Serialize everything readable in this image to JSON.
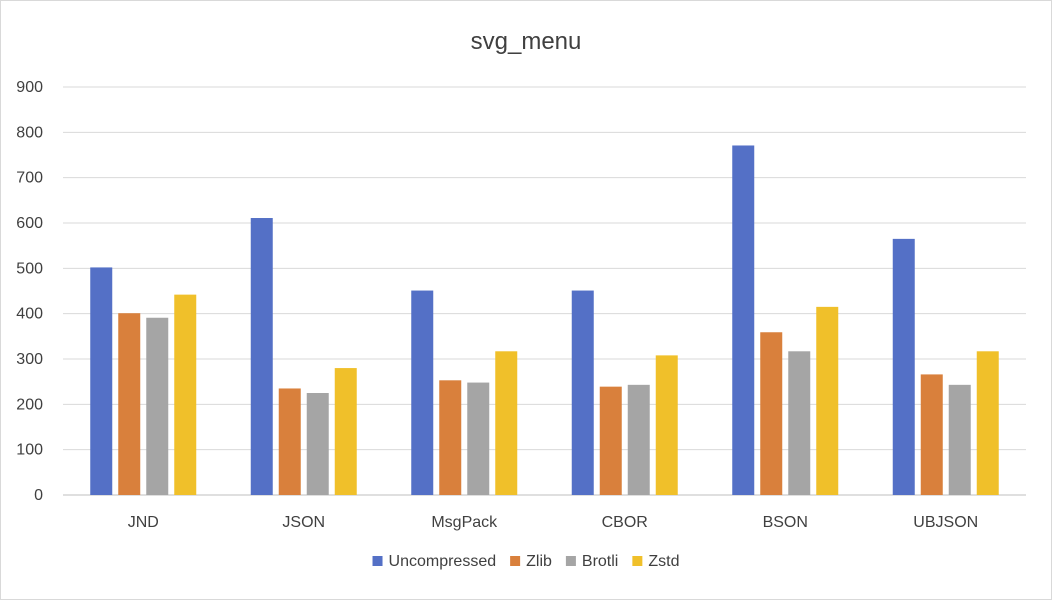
{
  "chart_data": {
    "type": "bar",
    "title": "svg_menu",
    "xlabel": "",
    "ylabel": "",
    "ylim": [
      0,
      900
    ],
    "yticks": [
      0,
      100,
      200,
      300,
      400,
      500,
      600,
      700,
      800,
      900
    ],
    "grid": true,
    "legend_position": "bottom",
    "categories": [
      "JND",
      "JSON",
      "MsgPack",
      "CBOR",
      "BSON",
      "UBJSON"
    ],
    "series": [
      {
        "name": "Uncompressed",
        "color": "#5470c6",
        "values": [
          502,
          611,
          451,
          451,
          771,
          565
        ]
      },
      {
        "name": "Zlib",
        "color": "#d9803c",
        "values": [
          401,
          235,
          253,
          239,
          359,
          266
        ]
      },
      {
        "name": "Brotli",
        "color": "#a5a5a5",
        "values": [
          391,
          225,
          248,
          243,
          317,
          243
        ]
      },
      {
        "name": "Zstd",
        "color": "#f0c02a",
        "values": [
          442,
          280,
          317,
          308,
          415,
          317
        ]
      }
    ]
  }
}
